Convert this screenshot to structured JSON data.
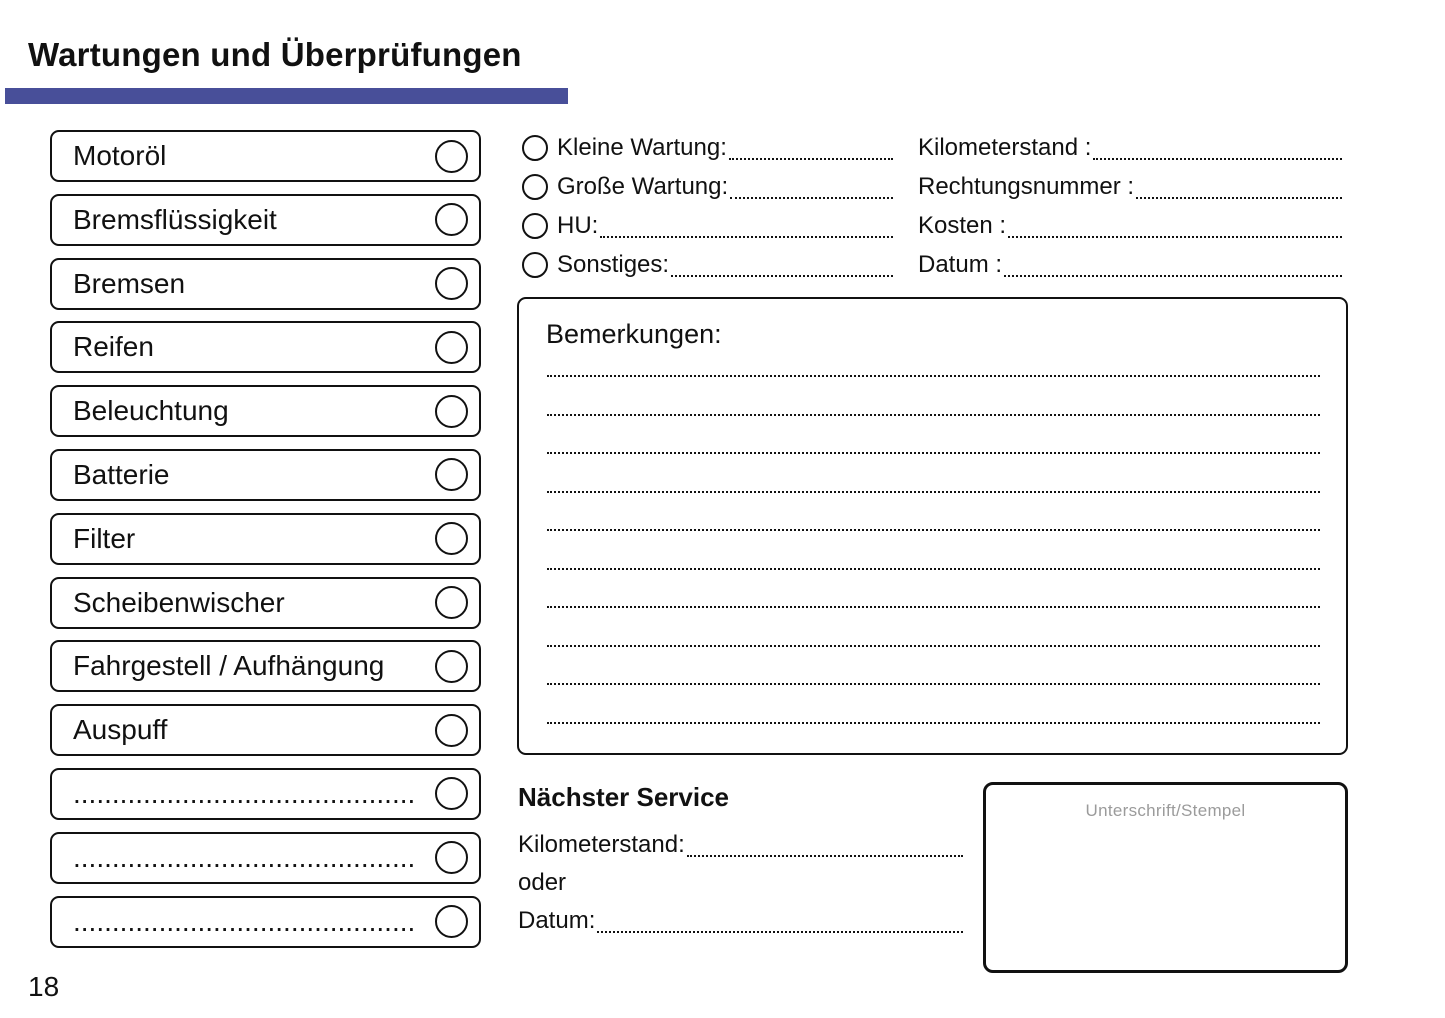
{
  "page": {
    "title": "Wartungen und Überprüfungen",
    "page_number": "18",
    "accent_color": "#484F99"
  },
  "checklist": {
    "items": [
      {
        "label": "Motoröl"
      },
      {
        "label": "Bremsflüssigkeit"
      },
      {
        "label": "Bremsen"
      },
      {
        "label": "Reifen"
      },
      {
        "label": "Beleuchtung"
      },
      {
        "label": "Batterie"
      },
      {
        "label": "Filter"
      },
      {
        "label": "Scheibenwischer"
      },
      {
        "label": "Fahrgestell / Aufhängung"
      },
      {
        "label": "Auspuff"
      },
      {
        "label": "............................................"
      },
      {
        "label": "............................................"
      },
      {
        "label": "............................................"
      }
    ]
  },
  "service_type": {
    "options": [
      {
        "label": "Kleine Wartung:"
      },
      {
        "label": "Große Wartung:"
      },
      {
        "label": "HU:"
      },
      {
        "label": "Sonstiges:"
      }
    ]
  },
  "record_fields": {
    "fields": [
      {
        "label": "Kilometerstand :"
      },
      {
        "label": "Rechtungsnummer :"
      },
      {
        "label": "Kosten :"
      },
      {
        "label": "Datum :"
      }
    ]
  },
  "remarks": {
    "title": "Bemerkungen:",
    "line_count": 10
  },
  "next_service": {
    "title": "Nächster Service",
    "rows": [
      {
        "label": "Kilometerstand:",
        "has_line": true
      },
      {
        "label": "oder",
        "has_line": false
      },
      {
        "label": "Datum:",
        "has_line": true
      }
    ]
  },
  "signature": {
    "label": "Unterschrift/Stempel"
  }
}
